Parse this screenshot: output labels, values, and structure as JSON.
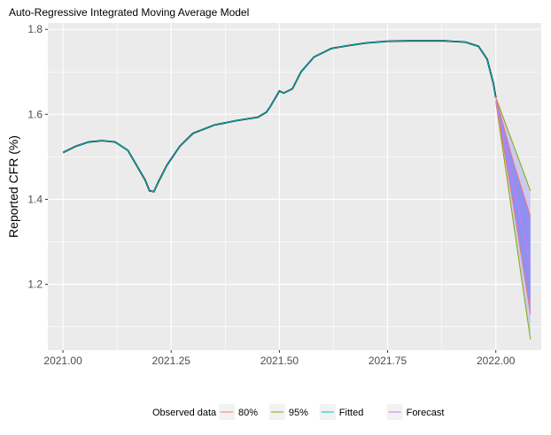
{
  "chart_data": {
    "type": "line",
    "title": "Auto-Regressive Integrated Moving Average Model",
    "xlabel": "",
    "ylabel": "Reported CFR (%)",
    "xlim": [
      2020.965,
      2022.105
    ],
    "ylim": [
      1.045,
      1.815
    ],
    "x_ticks": [
      2021.0,
      2021.25,
      2021.5,
      2021.75,
      2022.0
    ],
    "x_tick_labels": [
      "2021.00",
      "2021.25",
      "2021.50",
      "2021.75",
      "2022.00"
    ],
    "y_ticks": [
      1.2,
      1.4,
      1.6,
      1.8
    ],
    "y_tick_labels": [
      "1.2",
      "1.4",
      "1.6",
      "1.8"
    ],
    "grid": true,
    "legend_position": "bottom",
    "legend_entries": [
      {
        "label": "Observed data",
        "color": "#000000",
        "kind": "line"
      },
      {
        "label": "80%",
        "color": "#F8766D",
        "kind": "band"
      },
      {
        "label": "95%",
        "color": "#7CAE00",
        "kind": "band"
      },
      {
        "label": "Fitted",
        "color": "#00BFC4",
        "kind": "line"
      },
      {
        "label": "Forecast",
        "color": "#C77CFF",
        "kind": "line"
      }
    ],
    "series": [
      {
        "name": "Fitted",
        "color": "#00BFC4",
        "x": [
          2021.0,
          2021.03,
          2021.06,
          2021.09,
          2021.12,
          2021.15,
          2021.17,
          2021.19,
          2021.2,
          2021.21,
          2021.22,
          2021.24,
          2021.27,
          2021.3,
          2021.35,
          2021.4,
          2021.43,
          2021.45,
          2021.47,
          2021.48,
          2021.5,
          2021.51,
          2021.53,
          2021.55,
          2021.58,
          2021.62,
          2021.66,
          2021.7,
          2021.75,
          2021.8,
          2021.88,
          2021.93,
          2021.96,
          2021.98,
          2021.995,
          2022.0
        ],
        "y": [
          1.51,
          1.525,
          1.535,
          1.538,
          1.535,
          1.515,
          1.48,
          1.445,
          1.42,
          1.418,
          1.44,
          1.48,
          1.525,
          1.555,
          1.575,
          1.585,
          1.59,
          1.593,
          1.605,
          1.62,
          1.655,
          1.65,
          1.66,
          1.7,
          1.735,
          1.755,
          1.762,
          1.768,
          1.772,
          1.773,
          1.773,
          1.77,
          1.76,
          1.73,
          1.67,
          1.64
        ]
      },
      {
        "name": "Forecast",
        "color": "#C77CFF",
        "x": [
          2022.0,
          2022.04,
          2022.08
        ],
        "y": [
          1.63,
          1.44,
          1.245
        ]
      }
    ],
    "bands": [
      {
        "name": "95%",
        "color": "#7CAE00",
        "x": [
          2022.0,
          2022.04,
          2022.08
        ],
        "lower": [
          1.63,
          1.35,
          1.07
        ],
        "upper": [
          1.64,
          1.53,
          1.42
        ]
      },
      {
        "name": "80%",
        "color": "#F8766D",
        "x": [
          2022.0,
          2022.04,
          2022.08
        ],
        "lower": [
          1.63,
          1.39,
          1.13
        ],
        "upper": [
          1.64,
          1.49,
          1.36
        ]
      }
    ]
  }
}
